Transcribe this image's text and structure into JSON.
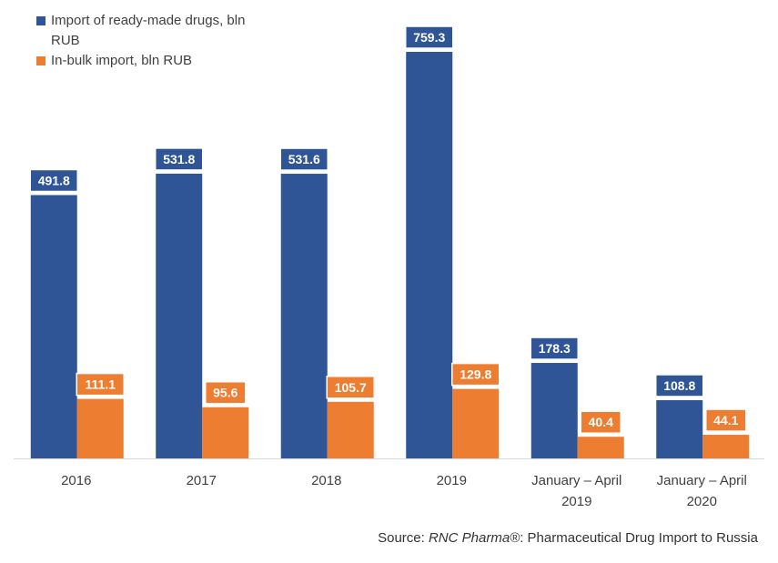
{
  "chart_data": {
    "type": "bar",
    "categories": [
      [
        "2016"
      ],
      [
        "2017"
      ],
      [
        "2018"
      ],
      [
        "2019"
      ],
      [
        "January – April",
        "2019"
      ],
      [
        "January – April",
        "2020"
      ]
    ],
    "series": [
      {
        "name": "Import of ready-made drugs, bln RUB",
        "color": "#2F5597",
        "values": [
          491.8,
          531.8,
          531.6,
          759.3,
          178.3,
          108.8
        ],
        "labels": [
          "491.8",
          "531.8",
          "531.6",
          "759.3",
          "178.3",
          "108.8"
        ]
      },
      {
        "name": "In-bulk import, bln RUB",
        "color": "#ED7D31",
        "values": [
          111.1,
          95.6,
          105.7,
          129.8,
          40.4,
          44.1
        ],
        "labels": [
          "111.1",
          "95.6",
          "105.7",
          "129.8",
          "40.4",
          "44.1"
        ]
      }
    ],
    "title": "",
    "xlabel": "",
    "ylabel": "",
    "ylim": [
      0,
      800
    ],
    "grid": false,
    "legend_position": "top-left"
  },
  "source": {
    "prefix": "Source: ",
    "brand": "RNC Pharma®",
    "suffix": ": Pharmaceutical Drug Import to Russia"
  }
}
